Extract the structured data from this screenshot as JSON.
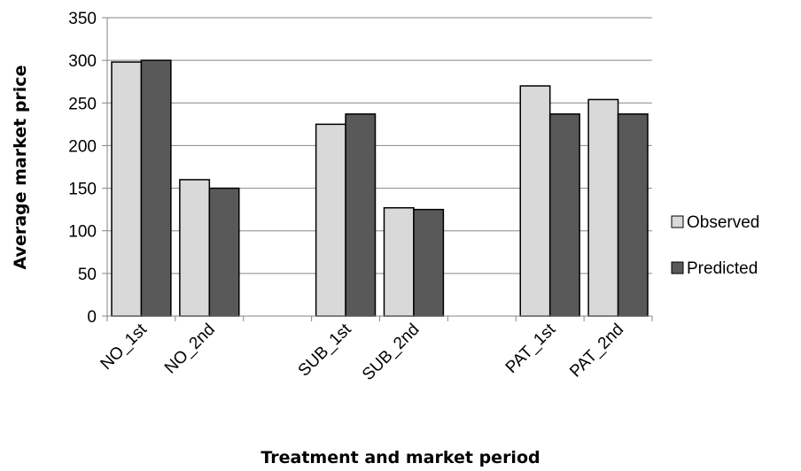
{
  "chart_data": {
    "type": "bar",
    "categories": [
      "NO_1st",
      "NO_2nd",
      "",
      "SUB_1st",
      "SUB_2nd",
      "",
      "PAT_1st",
      "PAT_2nd"
    ],
    "series": [
      {
        "name": "Observed",
        "color": "#d9d9d9",
        "values": [
          298,
          160,
          null,
          225,
          127,
          null,
          270,
          254
        ]
      },
      {
        "name": "Predicted",
        "color": "#595959",
        "values": [
          300,
          150,
          null,
          237,
          125,
          null,
          237,
          237
        ]
      }
    ],
    "title": "",
    "xlabel": "Treatment and market period",
    "ylabel": "Average market price",
    "ylim": [
      0,
      350
    ],
    "yticks": [
      0,
      50,
      100,
      150,
      200,
      250,
      300,
      350
    ],
    "grid": "horizontal",
    "legend_position": "right"
  }
}
